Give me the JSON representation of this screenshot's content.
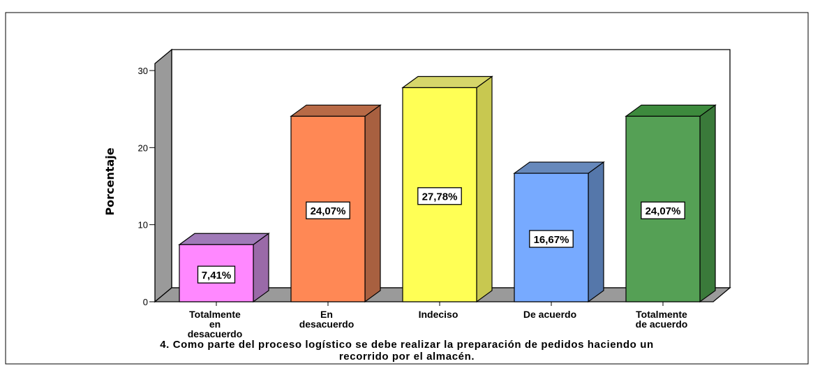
{
  "chart_data": {
    "type": "bar",
    "title": "",
    "xlabel": "4. Como parte del proceso logístico se debe realizar la preparación de pedidos haciendo un recorrido por el almacén.",
    "xlabel_lines": [
      "4. Como parte del proceso logístico se debe realizar la preparación de pedidos haciendo un",
      "recorrido por el almacén."
    ],
    "ylabel": "Porcentaje",
    "ylim": [
      0,
      30
    ],
    "yticks": [
      "0",
      "10",
      "20",
      "30"
    ],
    "categories": [
      [
        "Totalmente",
        "en",
        "desacuerdo"
      ],
      [
        "En",
        "desacuerdo"
      ],
      [
        "Indeciso"
      ],
      [
        "De acuerdo"
      ],
      [
        "Totalmente",
        "de acuerdo"
      ]
    ],
    "values": [
      7.41,
      24.07,
      27.78,
      16.67,
      24.07
    ],
    "data_labels": [
      "7,41%",
      "24,07%",
      "27,78%",
      "16,67%",
      "24,07%"
    ],
    "colors": [
      {
        "front": "#ff88ff",
        "side": "#9a6aa8",
        "top": "#a07ab8"
      },
      {
        "front": "#ff8855",
        "side": "#a86040",
        "top": "#b86a46"
      },
      {
        "front": "#ffff55",
        "side": "#c8c850",
        "top": "#d6d66a"
      },
      {
        "front": "#77aaff",
        "side": "#5577aa",
        "top": "#6688bb"
      },
      {
        "front": "#55a055",
        "side": "#3a7a3a",
        "top": "#3d8a3d"
      }
    ],
    "grid": false,
    "style": "3d"
  }
}
